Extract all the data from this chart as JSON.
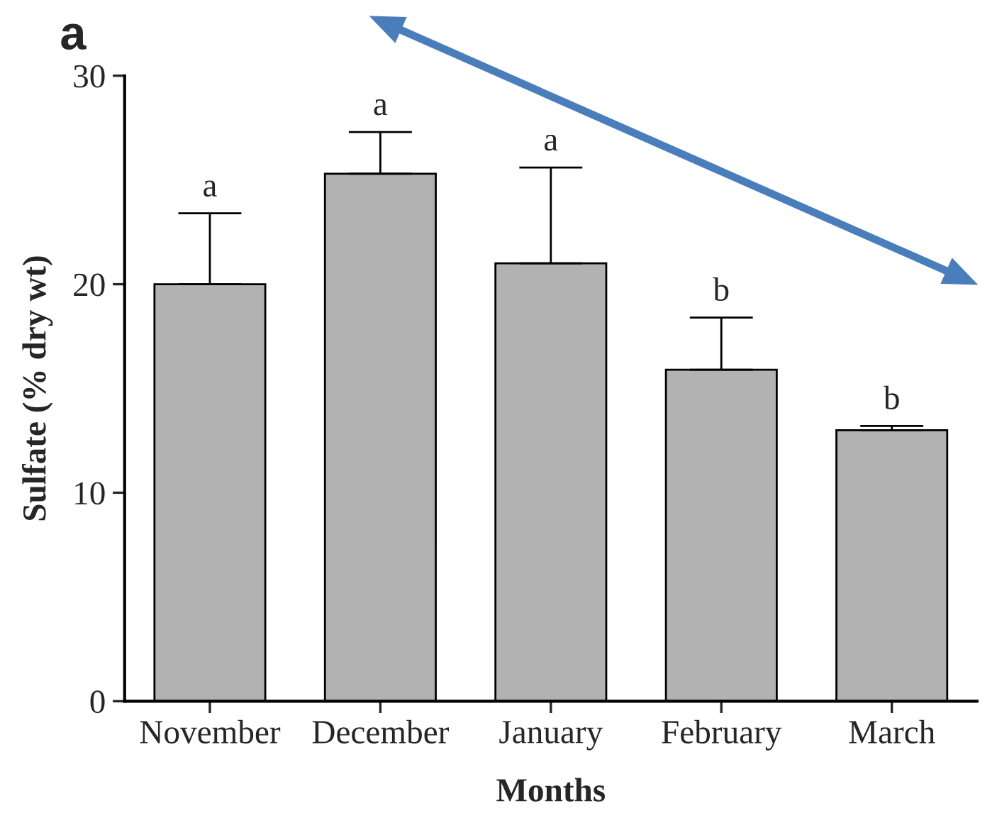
{
  "chart_data": {
    "type": "bar",
    "title": "a",
    "xlabel": "Months",
    "ylabel": "Sulfate (% dry wt)",
    "categories": [
      "November",
      "December",
      "January",
      "February",
      "March"
    ],
    "values": [
      20.0,
      25.3,
      21.0,
      15.9,
      13.0
    ],
    "errors": [
      [
        20.0,
        23.4
      ],
      [
        25.3,
        27.3
      ],
      [
        21.0,
        25.6
      ],
      [
        15.9,
        18.4
      ],
      [
        13.0,
        13.2
      ]
    ],
    "color": "#b2b2b2",
    "ylim": [
      0,
      30
    ],
    "yticks": [
      0,
      10,
      20,
      30
    ],
    "grid": false,
    "legend": false,
    "annotations": [
      "a",
      "a",
      "a",
      "b",
      "b"
    ]
  }
}
